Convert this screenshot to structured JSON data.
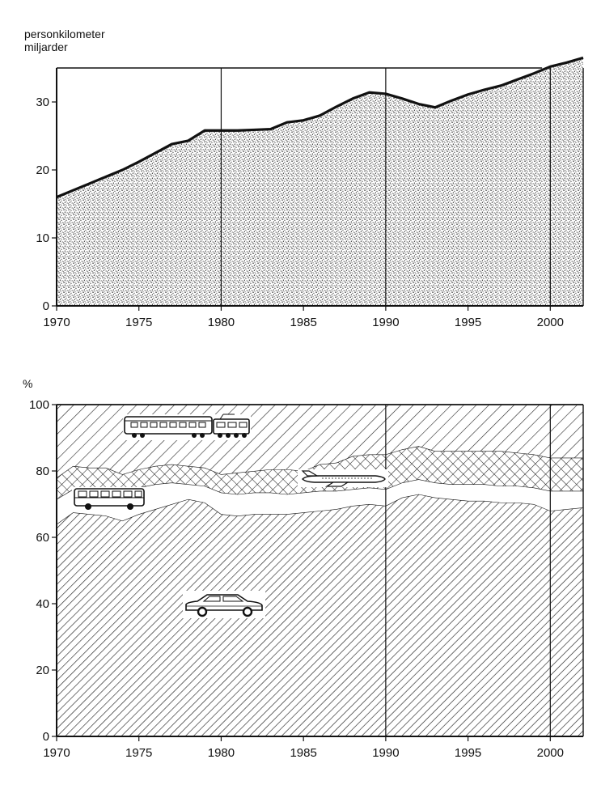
{
  "chart_data": [
    {
      "type": "area",
      "ylabel_line1": "personkilometer",
      "ylabel_line2": "miljarder",
      "xlim": [
        1970,
        2002
      ],
      "ylim": [
        0,
        35
      ],
      "x_ticks": [
        1970,
        1975,
        1980,
        1985,
        1990,
        1995,
        2000
      ],
      "y_ticks": [
        0,
        10,
        20,
        30
      ],
      "vertical_gridlines": [
        1980,
        1990,
        2000
      ],
      "fill": "stippled",
      "x": [
        1970,
        1971,
        1972,
        1973,
        1974,
        1975,
        1976,
        1977,
        1978,
        1979,
        1980,
        1981,
        1982,
        1983,
        1984,
        1985,
        1986,
        1987,
        1988,
        1989,
        1990,
        1991,
        1992,
        1993,
        1994,
        1995,
        1996,
        1997,
        1998,
        1999,
        2000,
        2001,
        2002
      ],
      "values": [
        16,
        17,
        18,
        19,
        20,
        21.2,
        22.5,
        23.8,
        24.3,
        25.8,
        25.8,
        25.8,
        25.9,
        26,
        27,
        27.3,
        28,
        29.3,
        30.5,
        31.4,
        31.2,
        30.5,
        29.7,
        29.2,
        30.2,
        31.1,
        31.8,
        32.4,
        33.3,
        34.2,
        35.2,
        35.8,
        36.5
      ]
    },
    {
      "type": "area",
      "stacked_percent": true,
      "ylabel": "%",
      "xlim": [
        1970,
        2002
      ],
      "ylim": [
        0,
        100
      ],
      "x_ticks": [
        1970,
        1975,
        1980,
        1985,
        1990,
        1995,
        2000
      ],
      "y_ticks": [
        0,
        20,
        40,
        60,
        80,
        100
      ],
      "vertical_gridlines": [
        1990,
        2000
      ],
      "x": [
        1970,
        1971,
        1972,
        1973,
        1974,
        1975,
        1976,
        1977,
        1978,
        1979,
        1980,
        1981,
        1982,
        1983,
        1984,
        1985,
        1986,
        1987,
        1988,
        1989,
        1990,
        1991,
        1992,
        1993,
        1994,
        1995,
        1996,
        1997,
        1998,
        1999,
        2000,
        2001,
        2002
      ],
      "series": [
        {
          "icon": "car-icon",
          "pattern": "hatch-dense",
          "values": [
            64,
            67.5,
            67,
            66.5,
            65,
            67,
            68.5,
            70,
            71.5,
            70.5,
            67,
            66.5,
            67,
            67,
            67,
            67.5,
            68,
            68.5,
            69.5,
            70,
            69.5,
            72,
            73,
            72,
            71.5,
            71,
            71,
            70.5,
            70.5,
            70,
            68,
            68.5,
            69
          ]
        },
        {
          "icon": "bus-icon",
          "pattern": "blank",
          "values": [
            7.5,
            7,
            7,
            7.5,
            10,
            8,
            7.5,
            6.5,
            4.5,
            5,
            6.5,
            6.5,
            6.5,
            6.5,
            6,
            6,
            6,
            5.5,
            5,
            5,
            5,
            4.5,
            4.5,
            4.5,
            4.5,
            5,
            5,
            5,
            5,
            5,
            6,
            5.5,
            5
          ]
        },
        {
          "icon": "airplane-icon",
          "pattern": "crosshatch",
          "values": [
            6.5,
            7,
            7,
            7,
            4,
            5.5,
            5.5,
            5.5,
            5.5,
            5.5,
            5.5,
            6.5,
            6.5,
            7,
            7.5,
            6.5,
            8,
            8.5,
            10,
            10,
            10.5,
            10,
            10,
            9.5,
            10,
            10,
            10,
            10.5,
            10,
            10,
            10,
            10,
            10
          ]
        },
        {
          "icon": "train-icon",
          "pattern": "hatch-wide",
          "values": [
            22,
            18.5,
            19,
            19,
            21,
            19.5,
            18.5,
            18,
            18.5,
            19,
            21,
            20.5,
            20,
            19.5,
            19.5,
            20,
            18,
            17.5,
            15.5,
            15,
            15,
            13.5,
            12.5,
            14,
            14,
            14,
            14,
            14,
            14.5,
            15,
            16,
            16,
            16
          ]
        }
      ]
    }
  ]
}
